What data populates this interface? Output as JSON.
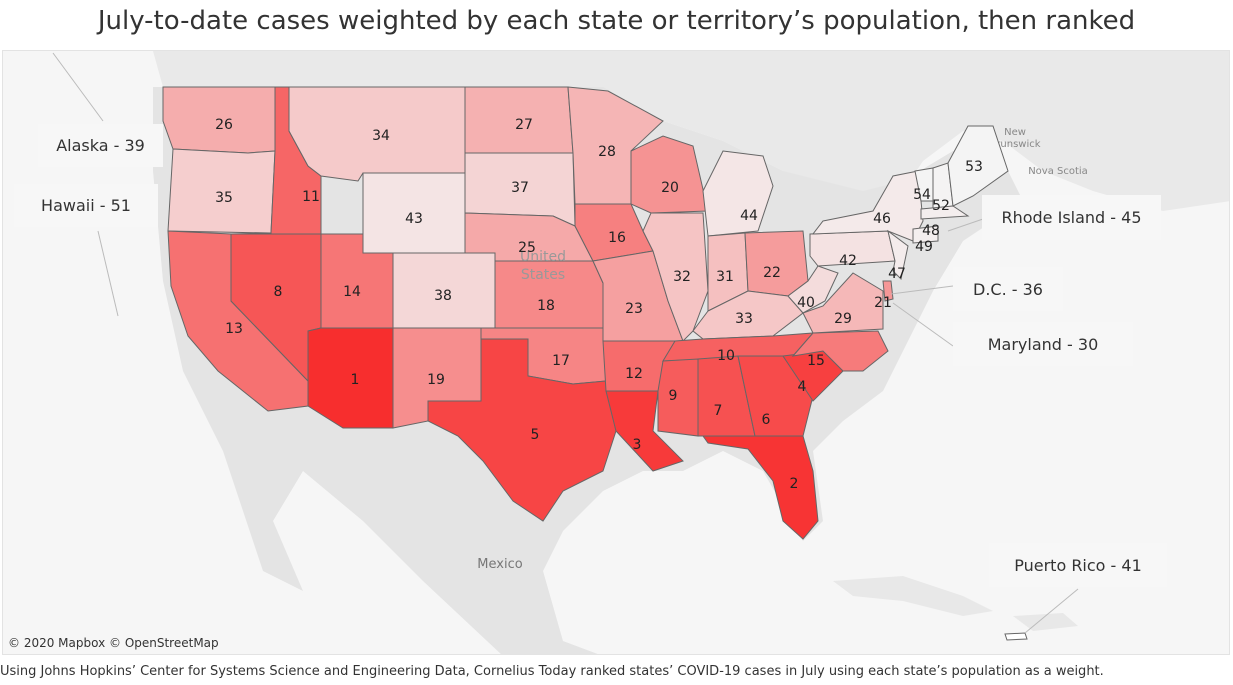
{
  "title": "July-to-date cases weighted by each state or territory’s population, then ranked",
  "footer": "Using Johns Hopkins’ Center for Systems Science and Engineering Data, Cornelius Today ranked states’ COVID-19 cases in July using each state’s population as a weight.",
  "attribution": "© 2020 Mapbox © OpenStreetMap",
  "colors": {
    "rank_best": "#f4f4f4",
    "rank_worst": "#f72e2e",
    "border": "#666666",
    "land": "#e6e6e6",
    "water": "#f6f6f6"
  },
  "basemap_labels": [
    {
      "id": "mexico",
      "text": "Mexico"
    },
    {
      "id": "united",
      "text": "United"
    },
    {
      "id": "states",
      "text": "States"
    },
    {
      "id": "new-brunswick-1",
      "text": "New"
    },
    {
      "id": "new-brunswick-2",
      "text": "Brunswick"
    },
    {
      "id": "nova-scotia",
      "text": "Nova Scotia"
    }
  ],
  "callouts": [
    {
      "id": "alaska",
      "text": "Alaska - 39"
    },
    {
      "id": "hawaii",
      "text": "Hawaii - 51"
    },
    {
      "id": "rhode-island",
      "text": "Rhode Island - 45"
    },
    {
      "id": "dc",
      "text": "D.C. - 36"
    },
    {
      "id": "maryland",
      "text": "Maryland - 30"
    },
    {
      "id": "puerto-rico",
      "text": "Puerto Rico - 41"
    }
  ],
  "states": [
    {
      "id": "WA",
      "rank": 26
    },
    {
      "id": "OR",
      "rank": 35
    },
    {
      "id": "CA",
      "rank": 13
    },
    {
      "id": "ID",
      "rank": 11
    },
    {
      "id": "NV",
      "rank": 8
    },
    {
      "id": "MT",
      "rank": 34
    },
    {
      "id": "WY",
      "rank": 43
    },
    {
      "id": "UT",
      "rank": 14
    },
    {
      "id": "AZ",
      "rank": 1
    },
    {
      "id": "CO",
      "rank": 38
    },
    {
      "id": "NM",
      "rank": 19
    },
    {
      "id": "ND",
      "rank": 27
    },
    {
      "id": "SD",
      "rank": 37
    },
    {
      "id": "NE",
      "rank": 25
    },
    {
      "id": "KS",
      "rank": 18
    },
    {
      "id": "OK",
      "rank": 17
    },
    {
      "id": "TX",
      "rank": 5
    },
    {
      "id": "MN",
      "rank": 28
    },
    {
      "id": "IA",
      "rank": 16
    },
    {
      "id": "MO",
      "rank": 23
    },
    {
      "id": "AR",
      "rank": 12
    },
    {
      "id": "LA",
      "rank": 3
    },
    {
      "id": "WI",
      "rank": 20
    },
    {
      "id": "IL",
      "rank": 32
    },
    {
      "id": "MI",
      "rank": 44
    },
    {
      "id": "IN",
      "rank": 31
    },
    {
      "id": "OH",
      "rank": 22
    },
    {
      "id": "KY",
      "rank": 33
    },
    {
      "id": "TN",
      "rank": 10
    },
    {
      "id": "MS",
      "rank": 9
    },
    {
      "id": "AL",
      "rank": 7
    },
    {
      "id": "GA",
      "rank": 6
    },
    {
      "id": "FL",
      "rank": 2
    },
    {
      "id": "SC",
      "rank": 4
    },
    {
      "id": "NC",
      "rank": 15
    },
    {
      "id": "VA",
      "rank": 29
    },
    {
      "id": "WV",
      "rank": 40
    },
    {
      "id": "PA",
      "rank": 42
    },
    {
      "id": "NY",
      "rank": 46
    },
    {
      "id": "VT",
      "rank": 54
    },
    {
      "id": "NH",
      "rank": 52
    },
    {
      "id": "ME",
      "rank": 53
    },
    {
      "id": "MA",
      "rank": 48
    },
    {
      "id": "CT",
      "rank": 49
    },
    {
      "id": "NJ",
      "rank": 47
    },
    {
      "id": "DE",
      "rank": 21
    }
  ]
}
